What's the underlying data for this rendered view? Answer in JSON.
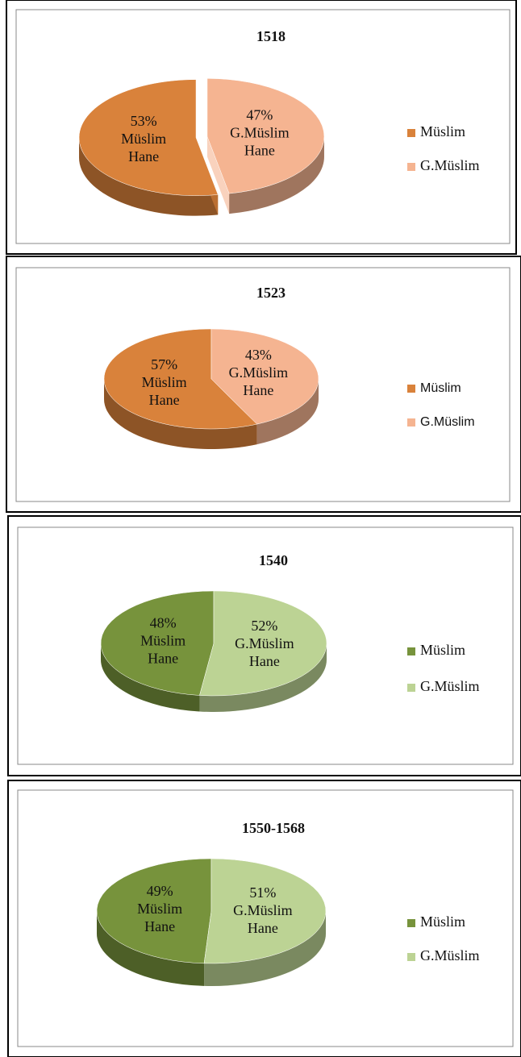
{
  "chart_data": [
    {
      "type": "pie",
      "title": "1518",
      "categories": [
        "Müslim",
        "G.Müslim"
      ],
      "values": [
        53,
        47
      ],
      "value_labels": [
        "53%",
        "47%"
      ],
      "slice_labels": [
        [
          "Müslim",
          "Hane"
        ],
        [
          "G.Müslim",
          "Hane"
        ]
      ],
      "colors": [
        "#d9823b",
        "#f5b491"
      ],
      "legend": "right"
    },
    {
      "type": "pie",
      "title": "1523",
      "categories": [
        "Müslim",
        "G.Müslim"
      ],
      "values": [
        57,
        43
      ],
      "value_labels": [
        "57%",
        "43%"
      ],
      "slice_labels": [
        [
          "Müslim",
          "Hane"
        ],
        [
          "G.Müslim",
          "Hane"
        ]
      ],
      "colors": [
        "#d9823b",
        "#f5b491"
      ],
      "legend": "right"
    },
    {
      "type": "pie",
      "title": "1540",
      "categories": [
        "Müslim",
        "G.Müslim"
      ],
      "values": [
        48,
        52
      ],
      "value_labels": [
        "48%",
        "52%"
      ],
      "slice_labels": [
        [
          "Müslim",
          "Hane"
        ],
        [
          "G.Müslim",
          "Hane"
        ]
      ],
      "colors": [
        "#77933c",
        "#bcd394"
      ],
      "legend": "right"
    },
    {
      "type": "pie",
      "title": "1550-1568",
      "categories": [
        "Müslim",
        "G.Müslim"
      ],
      "values": [
        49,
        51
      ],
      "value_labels": [
        "49%",
        "51%"
      ],
      "slice_labels": [
        [
          "Müslim",
          "Hane"
        ],
        [
          "G.Müslim",
          "Hane"
        ]
      ],
      "colors": [
        "#77933c",
        "#bcd394"
      ],
      "legend": "right"
    }
  ]
}
